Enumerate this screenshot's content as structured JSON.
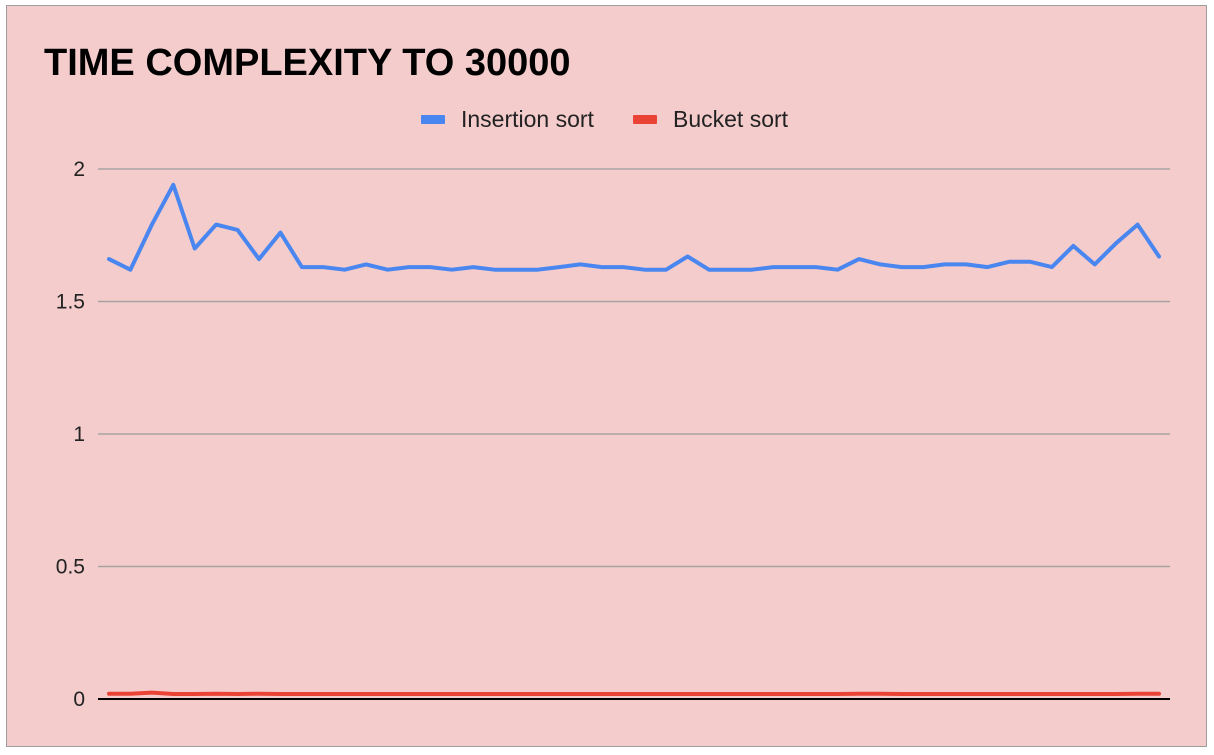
{
  "chart_data": {
    "type": "line",
    "title": "TIME COMPLEXITY TO 30000",
    "xlabel": "",
    "ylabel": "",
    "ylim": [
      0,
      2
    ],
    "yticks": [
      "0",
      "0.5",
      "1",
      "1.5",
      "2"
    ],
    "ytick_values": [
      0,
      0.5,
      1,
      1.5,
      2
    ],
    "grid": true,
    "legend_position": "top-center",
    "colors": {
      "background": "#f4cccc",
      "gridline": "#a8a3a3",
      "axis": "#000000"
    },
    "series": [
      {
        "name": "Insertion sort",
        "color": "#4a86f0",
        "values": [
          1.66,
          1.62,
          1.79,
          1.94,
          1.7,
          1.79,
          1.77,
          1.66,
          1.76,
          1.63,
          1.63,
          1.62,
          1.64,
          1.62,
          1.63,
          1.63,
          1.62,
          1.63,
          1.62,
          1.62,
          1.62,
          1.63,
          1.64,
          1.63,
          1.63,
          1.62,
          1.62,
          1.67,
          1.62,
          1.62,
          1.62,
          1.63,
          1.63,
          1.63,
          1.62,
          1.66,
          1.64,
          1.63,
          1.63,
          1.64,
          1.64,
          1.63,
          1.65,
          1.65,
          1.63,
          1.71,
          1.64,
          1.72,
          1.79,
          1.67
        ]
      },
      {
        "name": "Bucket sort",
        "color": "#ea4335",
        "values": [
          0.02,
          0.02,
          0.024,
          0.019,
          0.019,
          0.02,
          0.019,
          0.02,
          0.019,
          0.019,
          0.019,
          0.019,
          0.019,
          0.019,
          0.019,
          0.019,
          0.019,
          0.019,
          0.019,
          0.019,
          0.019,
          0.019,
          0.019,
          0.019,
          0.019,
          0.019,
          0.019,
          0.019,
          0.019,
          0.019,
          0.019,
          0.019,
          0.019,
          0.019,
          0.019,
          0.02,
          0.02,
          0.019,
          0.019,
          0.019,
          0.019,
          0.019,
          0.019,
          0.019,
          0.019,
          0.019,
          0.019,
          0.019,
          0.02,
          0.02
        ]
      }
    ]
  }
}
